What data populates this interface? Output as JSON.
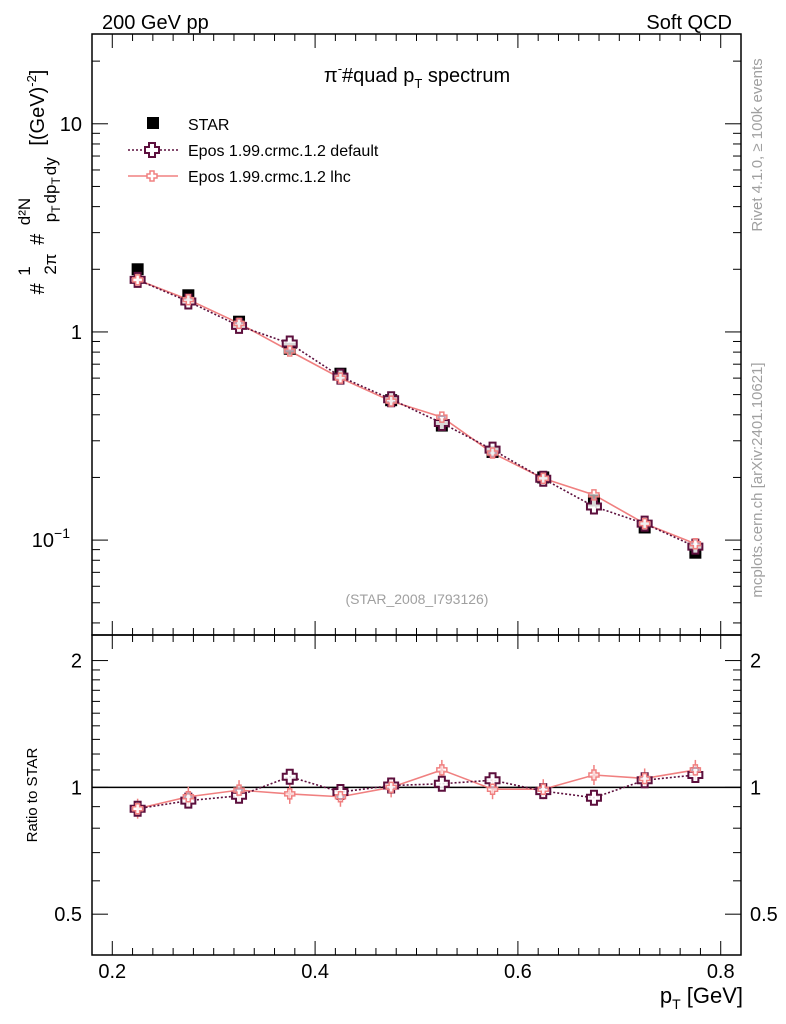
{
  "header": {
    "left": "200 GeV pp",
    "right": "Soft QCD"
  },
  "side": {
    "rivet": "Rivet 4.1.0, ≥ 100k events",
    "mcplots": "mcplots.cern.ch [arXiv:2401.10621]"
  },
  "colors": {
    "star": "#000000",
    "default": "#5c0f3d",
    "lhc": "#f08080",
    "ref": "#a0a0a0"
  },
  "chart_data": [
    {
      "type": "scatter",
      "panel": "main",
      "title": "π⁻#quad p_T spectrum",
      "title_parts": {
        "pi": "π",
        "minus": "-",
        "mid": "#quad p",
        "sub": "T",
        "end": " spectrum"
      },
      "xlabel": "p_T [GeV]",
      "xlabel_parts": {
        "p": "p",
        "sub": "T",
        "unit": " [GeV]"
      },
      "ylabel": "#1/2π #d²N/p_T dp_T dy [(GeV)⁻²]",
      "ylabel_parts": {
        "hash1": "#",
        "one": "1",
        "twopi": "2π",
        "hash2": "#",
        "d2N": "d²N",
        "pT": "p",
        "T1": "T",
        "dpT": "dp",
        "T2": "T",
        "dy": "dy",
        "unit": "[(GeV)",
        "exp": "-2",
        "close": "]"
      },
      "xlim": [
        0.18,
        0.82
      ],
      "ylim": [
        0.035,
        27
      ],
      "yscale": "log",
      "yticks": [
        {
          "value": 10,
          "base": "10",
          "exp": ""
        },
        {
          "value": 1,
          "base": "1",
          "exp": ""
        },
        {
          "value": 0.1,
          "base": "10",
          "exp": "−1"
        }
      ],
      "xticks": [
        "0.2",
        "0.4",
        "0.6",
        "0.8"
      ],
      "xtick_values": [
        0.2,
        0.4,
        0.6,
        0.8
      ],
      "x": [
        0.225,
        0.275,
        0.325,
        0.375,
        0.425,
        0.475,
        0.525,
        0.575,
        0.625,
        0.675,
        0.725,
        0.775
      ],
      "series": [
        {
          "name": "STAR",
          "style": "square",
          "values": [
            2.0,
            1.5,
            1.12,
            0.83,
            0.63,
            0.47,
            0.355,
            0.265,
            0.2,
            0.155,
            0.115,
            0.087
          ]
        },
        {
          "name": "Epos 1.99.crmc.1.2 default",
          "style": "open-cross-dotted",
          "values": [
            1.78,
            1.4,
            1.07,
            0.88,
            0.61,
            0.475,
            0.365,
            0.272,
            0.197,
            0.145,
            0.12,
            0.093
          ]
        },
        {
          "name": "Epos 1.99.crmc.1.2 lhc",
          "style": "small-cross-solid",
          "values": [
            1.78,
            1.43,
            1.1,
            0.81,
            0.6,
            0.465,
            0.39,
            0.262,
            0.198,
            0.165,
            0.12,
            0.096
          ]
        }
      ],
      "legend": [
        "STAR",
        "Epos 1.99.crmc.1.2 default",
        "Epos 1.99.crmc.1.2 lhc"
      ],
      "legend_position": "top-left",
      "annotation": "(STAR_2008_I793126)"
    },
    {
      "type": "line",
      "panel": "ratio",
      "ylabel": "Ratio to STAR",
      "ylim": [
        0.4,
        2.3
      ],
      "yscale": "log",
      "yticks": [
        "0.5",
        "1",
        "2"
      ],
      "ytick_values": [
        0.5,
        1,
        2
      ],
      "reference": 1,
      "x": [
        0.225,
        0.275,
        0.325,
        0.375,
        0.425,
        0.475,
        0.525,
        0.575,
        0.625,
        0.675,
        0.725,
        0.775
      ],
      "series": [
        {
          "name": "Epos 1.99.crmc.1.2 default",
          "values": [
            0.89,
            0.93,
            0.955,
            1.06,
            0.975,
            1.01,
            1.02,
            1.04,
            0.98,
            0.945,
            1.04,
            1.07
          ]
        },
        {
          "name": "Epos 1.99.crmc.1.2 lhc",
          "values": [
            0.89,
            0.95,
            0.985,
            0.965,
            0.95,
            1.0,
            1.1,
            0.99,
            0.99,
            1.07,
            1.05,
            1.1
          ]
        }
      ]
    }
  ]
}
